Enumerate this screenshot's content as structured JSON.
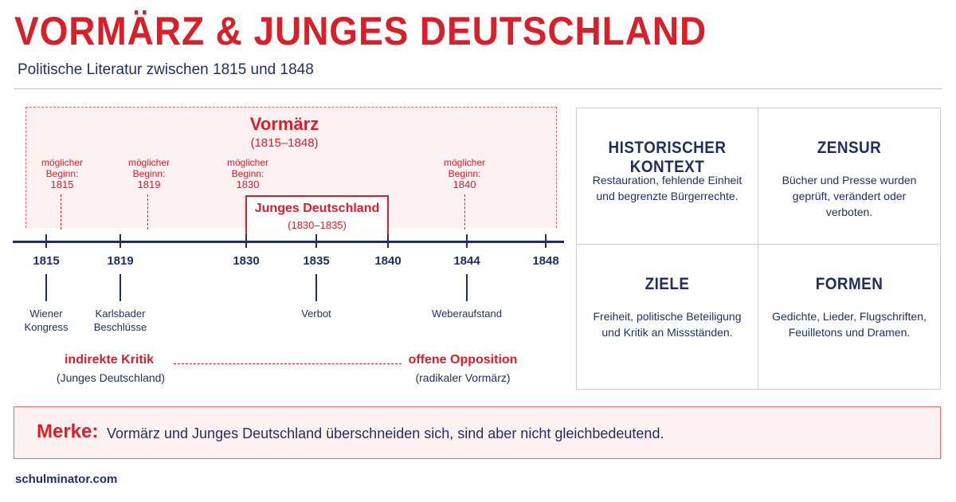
{
  "header": {
    "title": "VORMÄRZ & JUNGES DEUTSCHLAND",
    "subtitle": "Politische Literatur zwischen 1815 und 1848"
  },
  "timeline": {
    "vormaerz": {
      "title": "Vormärz",
      "range": "(1815–1848)"
    },
    "possible_starts": [
      {
        "label": "möglicher Beginn:",
        "year": "1815"
      },
      {
        "label": "möglicher Beginn:",
        "year": "1819"
      },
      {
        "label": "möglicher Beginn:",
        "year": "1830"
      },
      {
        "label": "möglicher Beginn:",
        "year": "1840"
      }
    ],
    "junges_deutschland": {
      "title": "Junges Deutschland",
      "range": "(1830–1835)"
    },
    "years": [
      "1815",
      "1819",
      "1830",
      "1835",
      "1840",
      "1844",
      "1848"
    ],
    "events": [
      {
        "year": "1815",
        "line1": "Wiener",
        "line2": "Kongress"
      },
      {
        "year": "1819",
        "line1": "Karlsbader",
        "line2": "Beschlüsse"
      },
      {
        "year": "1835",
        "line1": "Verbot",
        "line2": ""
      },
      {
        "year": "1844",
        "line1": "Weberaufstand",
        "line2": ""
      }
    ],
    "criticism": {
      "left": {
        "title": "indirekte Kritik",
        "sub": "(Junges Deutschland)"
      },
      "right": {
        "title": "offene Opposition",
        "sub": "(radikaler Vormärz)"
      }
    }
  },
  "cards": [
    {
      "heading": "HISTORISCHER KONTEXT",
      "text": "Restauration, fehlende Einheit und begrenzte Bürgerrechte."
    },
    {
      "heading": "ZENSUR",
      "text": "Bücher und Presse wurden geprüft, verändert oder verboten."
    },
    {
      "heading": "ZIELE",
      "text": "Freiheit, politische Beteiligung und Kritik an Missständen."
    },
    {
      "heading": "FORMEN",
      "text": "Gedichte, Lieder, Flugschriften, Feuilletons und Dramen."
    }
  ],
  "merke": {
    "label": "Merke:",
    "text": "Vormärz und Junges Deutschland überschneiden sich, sind aber nicht gleichbedeutend."
  },
  "footer": {
    "text": "schulminator.com"
  },
  "colors": {
    "accent": "#d6202a",
    "navy": "#1f2f5c",
    "tint": "#fdf1f2"
  }
}
